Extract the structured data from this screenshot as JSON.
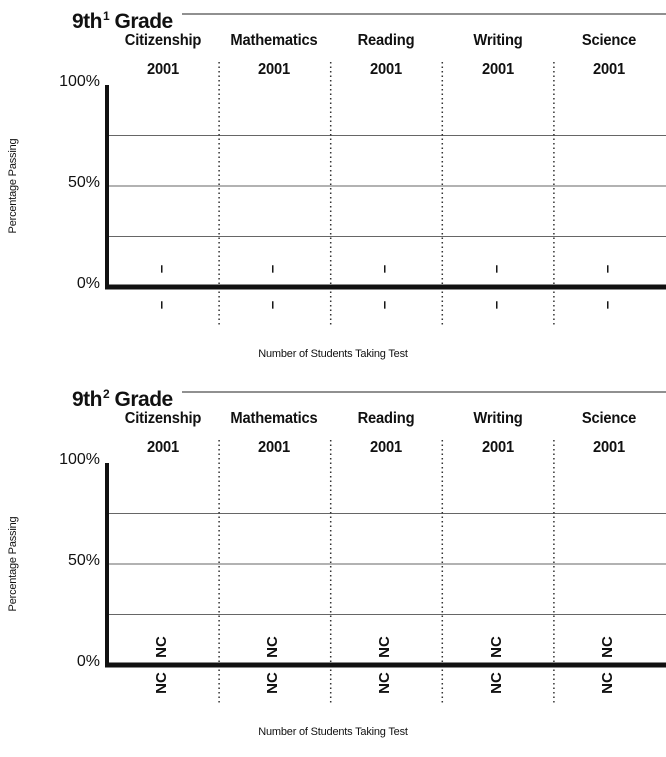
{
  "chart_data": [
    {
      "type": "bar",
      "title_main": "9th",
      "title_sup": "1",
      "title_rest": "Grade",
      "categories": [
        "Citizenship",
        "Mathematics",
        "Reading",
        "Writing",
        "Science"
      ],
      "years": [
        "2001",
        "2001",
        "2001",
        "2001",
        "2001"
      ],
      "ylabel": "Percentage Passing",
      "xlabel": "Number of Students Taking Test",
      "ylim": [
        0,
        100
      ],
      "yticks": [
        "100%",
        "50%",
        "0%"
      ],
      "grid": [
        25,
        50,
        75
      ],
      "series": [
        {
          "values": [
            null,
            null,
            null,
            null,
            null
          ]
        }
      ],
      "above_bar_marks": [
        "–",
        "–",
        "–",
        "–",
        "–"
      ],
      "below_bar_marks": [
        "–",
        "–",
        "–",
        "–",
        "–"
      ]
    },
    {
      "type": "bar",
      "title_main": "9th",
      "title_sup": "2",
      "title_rest": "Grade",
      "categories": [
        "Citizenship",
        "Mathematics",
        "Reading",
        "Writing",
        "Science"
      ],
      "years": [
        "2001",
        "2001",
        "2001",
        "2001",
        "2001"
      ],
      "ylabel": "Percentage Passing",
      "xlabel": "Number of Students Taking Test",
      "ylim": [
        0,
        100
      ],
      "yticks": [
        "100%",
        "50%",
        "0%"
      ],
      "grid": [
        25,
        50,
        75
      ],
      "series": [
        {
          "values": [
            null,
            null,
            null,
            null,
            null
          ]
        }
      ],
      "above_bar_marks": [
        "NC",
        "NC",
        "NC",
        "NC",
        "NC"
      ],
      "below_bar_marks": [
        "NC",
        "NC",
        "NC",
        "NC",
        "NC"
      ]
    }
  ]
}
